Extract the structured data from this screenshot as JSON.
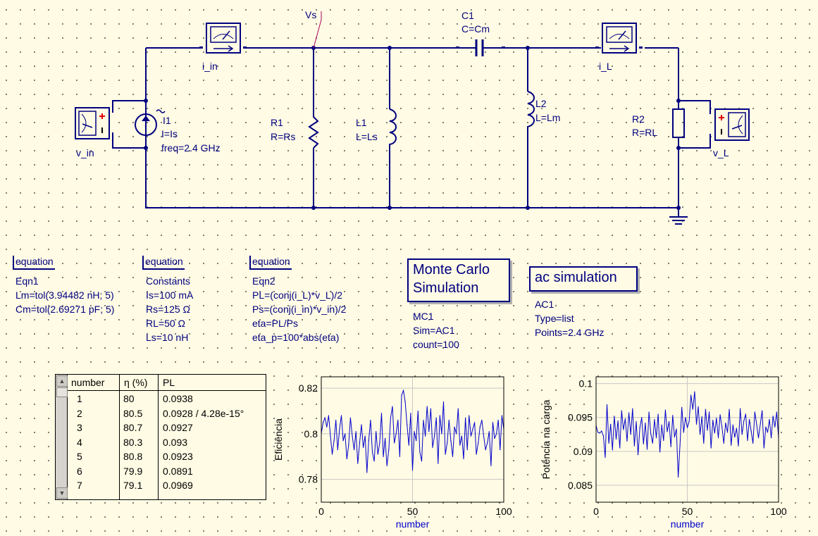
{
  "schematic": {
    "node_label": "Vs",
    "components": {
      "c1": {
        "name": "C1",
        "value": "C=Cm"
      },
      "r1": {
        "name": "R1",
        "value": "R=Rs"
      },
      "l1": {
        "name": "L1",
        "value": "L=Ls"
      },
      "l2": {
        "name": "L2",
        "value": "L=Lm"
      },
      "r2": {
        "name": "R2",
        "value": "R=RL"
      },
      "i1": {
        "name": "I1",
        "value": "I=Is",
        "freq": "freq=2.4 GHz"
      }
    },
    "probes": {
      "i_in": "i_in",
      "i_l": "i_L",
      "v_in": "v_in",
      "v_l": "v_L"
    }
  },
  "equations": [
    {
      "header": "equation",
      "name": "Eqn1",
      "lines": [
        "Lm=tol(3.94482 nH; 5)",
        "Cm=tol(2.69271 pF; 5)"
      ]
    },
    {
      "header": "equation",
      "name": "Constants",
      "lines": [
        "Is=100 mA",
        "Rs=125 Ω",
        "RL=50 Ω",
        "Ls=10 nH"
      ]
    },
    {
      "header": "equation",
      "name": "Eqn2",
      "lines": [
        "PL=(conj(i_L)*v_L)/2",
        "Ps=(conj(i_in)*v_in)/2",
        "eta=PL/Ps",
        "eta_p=100*abs(eta)"
      ]
    }
  ],
  "simulations": {
    "monte_carlo": {
      "title_line1": "Monte Carlo",
      "title_line2": "Simulation",
      "name": "MC1",
      "sim": "Sim=AC1",
      "count": "count=100"
    },
    "ac": {
      "title": "ac simulation",
      "name": "AC1",
      "type": "Type=list",
      "points": "Points=2.4 GHz"
    }
  },
  "table": {
    "headers": [
      "number",
      "η (%)",
      "PL"
    ],
    "rows": [
      [
        "1",
        "80",
        "0.0938"
      ],
      [
        "2",
        "80.5",
        "0.0928 / 4.28e-15°"
      ],
      [
        "3",
        "80.7",
        "0.0927"
      ],
      [
        "4",
        "80.3",
        "0.093"
      ],
      [
        "5",
        "80.8",
        "0.0923"
      ],
      [
        "6",
        "79.9",
        "0.0891"
      ],
      [
        "7",
        "79.1",
        "0.0969"
      ]
    ]
  },
  "chart_data": [
    {
      "type": "line",
      "title": "",
      "xlabel": "number",
      "ylabel": "Eficiência",
      "xlim": [
        0,
        100
      ],
      "ylim": [
        0.77,
        0.825
      ],
      "xticks": [
        "0",
        "50",
        "100"
      ],
      "yticks": [
        "0.78",
        "0.8",
        "0.82"
      ],
      "yticks_values": [
        0.78,
        0.8,
        0.82
      ],
      "xticks_values": [
        0,
        50,
        100
      ],
      "grid": true,
      "line_color": "#0000cc",
      "series": [
        {
          "x": [
            0,
            1,
            2,
            3,
            4,
            5,
            6,
            7,
            8,
            9,
            10,
            11,
            12,
            13,
            14,
            15,
            16,
            17,
            18,
            19,
            20,
            21,
            22,
            23,
            24,
            25,
            26,
            27,
            28,
            29,
            30,
            31,
            32,
            33,
            34,
            35,
            36,
            37,
            38,
            39,
            40,
            41,
            42,
            43,
            44,
            45,
            46,
            47,
            48,
            49,
            50,
            51,
            52,
            53,
            54,
            55,
            56,
            57,
            58,
            59,
            60,
            61,
            62,
            63,
            64,
            65,
            66,
            67,
            68,
            69,
            70,
            71,
            72,
            73,
            74,
            75,
            76,
            77,
            78,
            79,
            80,
            81,
            82,
            83,
            84,
            85,
            86,
            87,
            88,
            89,
            90,
            91,
            92,
            93,
            94,
            95,
            96,
            97,
            98,
            99,
            100
          ],
          "y": [
            0.8,
            0.805,
            0.807,
            0.803,
            0.808,
            0.799,
            0.791,
            0.797,
            0.806,
            0.793,
            0.802,
            0.808,
            0.797,
            0.8,
            0.789,
            0.795,
            0.807,
            0.799,
            0.793,
            0.801,
            0.787,
            0.796,
            0.804,
            0.794,
            0.799,
            0.783,
            0.797,
            0.806,
            0.792,
            0.788,
            0.801,
            0.791,
            0.796,
            0.809,
            0.79,
            0.798,
            0.786,
            0.793,
            0.807,
            0.812,
            0.796,
            0.8,
            0.806,
            0.79,
            0.817,
            0.819,
            0.814,
            0.804,
            0.795,
            0.809,
            0.784,
            0.801,
            0.797,
            0.81,
            0.792,
            0.788,
            0.806,
            0.799,
            0.812,
            0.801,
            0.811,
            0.794,
            0.799,
            0.807,
            0.787,
            0.808,
            0.8,
            0.814,
            0.791,
            0.796,
            0.806,
            0.797,
            0.79,
            0.803,
            0.8,
            0.811,
            0.795,
            0.799,
            0.789,
            0.807,
            0.793,
            0.808,
            0.799,
            0.802,
            0.805,
            0.791,
            0.796,
            0.803,
            0.806,
            0.799,
            0.793,
            0.796,
            0.801,
            0.786,
            0.805,
            0.798,
            0.8,
            0.806,
            0.793,
            0.808,
            0.802
          ]
        }
      ]
    },
    {
      "type": "line",
      "title": "",
      "xlabel": "number",
      "ylabel": "Potência na carga",
      "xlim": [
        0,
        100
      ],
      "ylim": [
        0.0825,
        0.101
      ],
      "xticks": [
        "0",
        "50",
        "100"
      ],
      "yticks": [
        "0.085",
        "0.09",
        "0.095",
        "0.1"
      ],
      "yticks_values": [
        0.085,
        0.09,
        0.095,
        0.1
      ],
      "xticks_values": [
        0,
        50,
        100
      ],
      "grid": true,
      "line_color": "#0000cc",
      "series": [
        {
          "x": [
            0,
            1,
            2,
            3,
            4,
            5,
            6,
            7,
            8,
            9,
            10,
            11,
            12,
            13,
            14,
            15,
            16,
            17,
            18,
            19,
            20,
            21,
            22,
            23,
            24,
            25,
            26,
            27,
            28,
            29,
            30,
            31,
            32,
            33,
            34,
            35,
            36,
            37,
            38,
            39,
            40,
            41,
            42,
            43,
            44,
            45,
            46,
            47,
            48,
            49,
            50,
            51,
            52,
            53,
            54,
            55,
            56,
            57,
            58,
            59,
            60,
            61,
            62,
            63,
            64,
            65,
            66,
            67,
            68,
            69,
            70,
            71,
            72,
            73,
            74,
            75,
            76,
            77,
            78,
            79,
            80,
            81,
            82,
            83,
            84,
            85,
            86,
            87,
            88,
            89,
            90,
            91,
            92,
            93,
            94,
            95,
            96,
            97,
            98,
            99,
            100
          ],
          "y": [
            0.0938,
            0.0928,
            0.0927,
            0.093,
            0.0923,
            0.0891,
            0.0969,
            0.0912,
            0.094,
            0.0902,
            0.0952,
            0.0918,
            0.0945,
            0.0905,
            0.096,
            0.0932,
            0.0948,
            0.0915,
            0.0957,
            0.0925,
            0.0963,
            0.0908,
            0.0944,
            0.0895,
            0.0935,
            0.095,
            0.0911,
            0.0942,
            0.0903,
            0.0958,
            0.0926,
            0.0912,
            0.0947,
            0.092,
            0.0955,
            0.0899,
            0.0939,
            0.0916,
            0.0961,
            0.0929,
            0.0944,
            0.0907,
            0.0953,
            0.0921,
            0.0933,
            0.0862,
            0.0909,
            0.0965,
            0.0928,
            0.095,
            0.0935,
            0.0944,
            0.0983,
            0.0962,
            0.0988,
            0.094,
            0.0966,
            0.0925,
            0.0951,
            0.0912,
            0.0962,
            0.0931,
            0.0958,
            0.0905,
            0.0946,
            0.0927,
            0.0949,
            0.092,
            0.0954,
            0.0936,
            0.0912,
            0.0942,
            0.0928,
            0.0962,
            0.0909,
            0.0939,
            0.0921,
            0.0934,
            0.0908,
            0.0963,
            0.0925,
            0.0945,
            0.0955,
            0.0916,
            0.0947,
            0.093,
            0.0912,
            0.0958,
            0.094,
            0.092,
            0.094,
            0.096,
            0.0905,
            0.0936,
            0.0928,
            0.0947,
            0.092,
            0.0952,
            0.0936,
            0.0958,
            0.092
          ]
        }
      ]
    }
  ]
}
